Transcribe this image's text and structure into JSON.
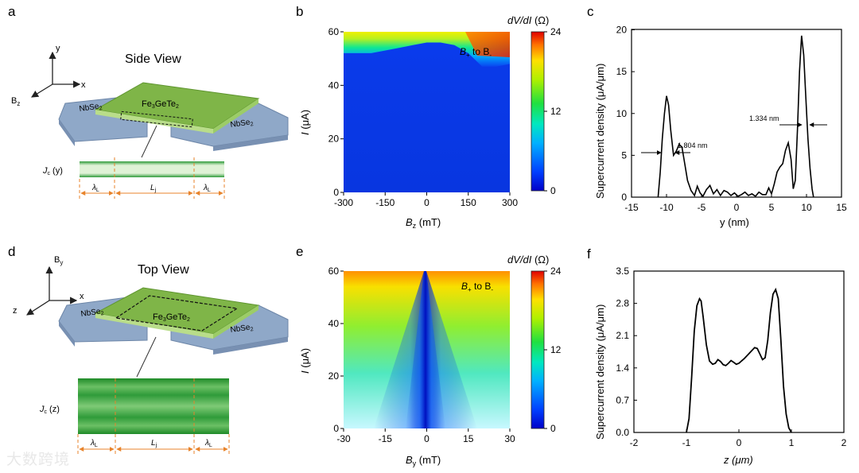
{
  "panels": {
    "a": {
      "letter": "a",
      "title": "Side View",
      "axes": {
        "y": "y",
        "x": "x",
        "bz": "B",
        "bz_sub": "z"
      },
      "material": {
        "base": "Fe",
        "s1": "3",
        "mid": "GeTe",
        "s2": "2"
      },
      "electrode": {
        "base": "NbSe",
        "sub": "2"
      },
      "jc_label": "J",
      "jc_sub": "c",
      "jc_arg": " (y)",
      "lambda_label": "λ",
      "lambda_sub": "L",
      "lj_label": "L",
      "lj_sub": "j"
    },
    "d": {
      "letter": "d",
      "title": "Top View",
      "axes": {
        "by": "B",
        "by_sub": "y",
        "x": "x",
        "z": "z"
      },
      "jc_label": "J",
      "jc_sub": "c",
      "jc_arg": " (z)"
    },
    "b": {
      "letter": "b",
      "annotation": {
        "a": "B",
        "a_sub": "+",
        "mid": " to B",
        "b_sub": "-"
      }
    },
    "e": {
      "letter": "e",
      "annotation": {
        "a": "B",
        "a_sub": "+",
        "mid": " to B",
        "b_sub": "-"
      }
    },
    "c": {
      "letter": "c",
      "ann1": "1.804 nm",
      "ann2": "1.334 nm"
    },
    "f": {
      "letter": "f"
    }
  },
  "watermark": "大数跨境",
  "colors": {
    "accent_orange": "#e8832b",
    "green_film": "#7fb548",
    "electrode_blue": "#8fa8c8",
    "curve": "#000000"
  },
  "chart_data": [
    {
      "id": "b",
      "type": "heatmap",
      "xlabel": "B",
      "xlabel_sub": "z",
      "xlabel_unit": " (mT)",
      "ylabel": "I",
      "ylabel_unit": " (μA)",
      "xlim": [
        -300,
        300
      ],
      "ylim": [
        0,
        60
      ],
      "xticks": [
        -300,
        -150,
        0,
        150,
        300
      ],
      "yticks": [
        0,
        20,
        40,
        60
      ],
      "switching_current_uA": {
        "B_mT": [
          -300,
          -200,
          -100,
          -50,
          0,
          50,
          100,
          150,
          200,
          250,
          300
        ],
        "I_uA": [
          52,
          52,
          54,
          55,
          56,
          56,
          55,
          52,
          47,
          47,
          48
        ]
      },
      "colorbar": {
        "label": "dV/dI",
        "unit": " (Ω)",
        "min": 0,
        "max": 24,
        "ticks": [
          0,
          12,
          24
        ]
      }
    },
    {
      "id": "c",
      "type": "line",
      "xlabel": "y (nm)",
      "ylabel": "Supercurrent density (μA/μm)",
      "xlim": [
        -15,
        15
      ],
      "ylim": [
        0,
        21
      ],
      "xticks": [
        -15,
        -10,
        -5,
        0,
        5,
        10,
        15
      ],
      "yticks": [
        0,
        5,
        10,
        15,
        20
      ],
      "series": [
        {
          "x": [
            -11.2,
            -10.9,
            -10.6,
            -10.3,
            -10.0,
            -9.7,
            -9.4,
            -9.0,
            -8.6,
            -8.2,
            -7.8,
            -7.4,
            -7.0,
            -6.5,
            -6.0,
            -5.6,
            -5.2,
            -4.8,
            -4.3,
            -3.8,
            -3.3,
            -2.8,
            -2.3,
            -1.8,
            -1.3,
            -0.8,
            -0.3,
            0.2,
            0.7,
            1.2,
            1.7,
            2.2,
            2.7,
            3.2,
            3.7,
            4.2,
            4.6,
            5.0,
            5.4,
            5.8,
            6.2,
            6.6,
            7.0,
            7.4,
            7.8,
            8.1,
            8.4,
            8.7,
            9.0,
            9.3,
            9.6,
            9.9,
            10.2,
            10.5,
            10.8,
            11.0
          ],
          "y": [
            0,
            3,
            7,
            10,
            12.1,
            11,
            8,
            5,
            5.5,
            6.3,
            6,
            4,
            2,
            0.8,
            0.2,
            1.3,
            0.5,
            0.1,
            0.9,
            1.4,
            0.4,
            0.9,
            0.2,
            0.8,
            0.6,
            0.2,
            0.5,
            0.1,
            0.3,
            0.6,
            0.2,
            0.4,
            0.1,
            0.6,
            0.3,
            0.3,
            1.1,
            0.4,
            1.6,
            3.0,
            3.6,
            4.0,
            5.6,
            6.5,
            4.5,
            1.0,
            2.0,
            8.0,
            15.0,
            19.3,
            17.0,
            12.0,
            7.0,
            3.5,
            1.0,
            0
          ]
        }
      ]
    },
    {
      "id": "e",
      "type": "heatmap",
      "xlabel": "B",
      "xlabel_sub": "y",
      "xlabel_unit": " (mT)",
      "ylabel": "I",
      "ylabel_unit": " (μA)",
      "xlim": [
        -30,
        30
      ],
      "ylim": [
        0,
        60
      ],
      "xticks": [
        -30,
        -15,
        0,
        15,
        30
      ],
      "yticks": [
        0,
        20,
        40,
        60
      ],
      "colorbar": {
        "label": "dV/dI",
        "unit": " (Ω)",
        "min": 0,
        "max": 24,
        "ticks": [
          0,
          12,
          24
        ]
      }
    },
    {
      "id": "f",
      "type": "line",
      "xlabel": "z (μm)",
      "ylabel": "Supercurrent density (μA/μm)",
      "xlim": [
        -2,
        2
      ],
      "ylim": [
        0,
        3.5
      ],
      "xticks": [
        -2,
        -1,
        0,
        1,
        2
      ],
      "yticks": [
        0.0,
        0.7,
        1.4,
        2.1,
        2.8,
        3.5
      ],
      "series": [
        {
          "x": [
            -1.0,
            -0.95,
            -0.9,
            -0.85,
            -0.8,
            -0.75,
            -0.72,
            -0.68,
            -0.62,
            -0.56,
            -0.5,
            -0.45,
            -0.4,
            -0.35,
            -0.3,
            -0.25,
            -0.2,
            -0.15,
            -0.1,
            -0.05,
            0.0,
            0.05,
            0.1,
            0.15,
            0.2,
            0.25,
            0.3,
            0.35,
            0.4,
            0.45,
            0.5,
            0.55,
            0.6,
            0.65,
            0.7,
            0.75,
            0.8,
            0.85,
            0.9,
            0.95,
            1.0
          ],
          "y": [
            0,
            0.3,
            1.2,
            2.2,
            2.75,
            2.9,
            2.85,
            2.5,
            1.9,
            1.55,
            1.48,
            1.5,
            1.58,
            1.54,
            1.47,
            1.45,
            1.5,
            1.56,
            1.52,
            1.48,
            1.5,
            1.55,
            1.6,
            1.66,
            1.72,
            1.78,
            1.84,
            1.82,
            1.7,
            1.58,
            1.62,
            2.0,
            2.6,
            3.0,
            3.1,
            2.9,
            2.0,
            1.0,
            0.4,
            0.1,
            0
          ]
        }
      ]
    }
  ]
}
